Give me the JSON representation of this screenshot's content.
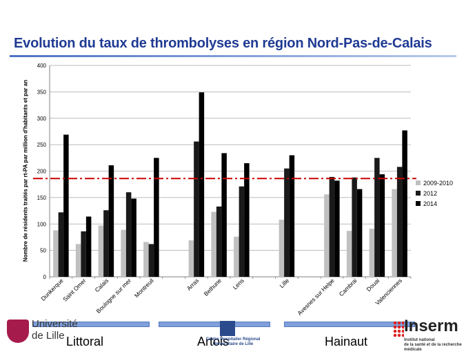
{
  "page_title": "Evolution du taux de thrombolyses en région Nord-Pas-de-Calais",
  "colors": {
    "title": "#1f3a93",
    "series_2009_2010": "#c0c0c0",
    "series_2012": "#1a1a1a",
    "series_2014": "#000000",
    "reference_line": "#cc0000"
  },
  "chart_data": {
    "type": "bar",
    "title": "",
    "ylabel": "Nombre de résidents traités par rt-PA par million d'habitants et par an",
    "xlabel": "",
    "ylim": [
      0,
      400
    ],
    "yticks": [
      0,
      50,
      100,
      150,
      200,
      250,
      300,
      350,
      400
    ],
    "grid": true,
    "legend_position": "right",
    "reference_line": {
      "y": 186,
      "style": "dash-dot"
    },
    "categories": [
      "Dunkerque",
      "Saint Omer",
      "Calais",
      "Boulogne sur mer",
      "Montreuil",
      "",
      "Arras",
      "Bethune",
      "Lens",
      "",
      "Lille",
      "",
      "Avesnes sur Helpe",
      "Cambrai",
      "Douai",
      "Valenciennes"
    ],
    "series": [
      {
        "name": "2009-2010",
        "values": [
          88,
          62,
          97,
          89,
          66,
          null,
          69,
          123,
          76,
          null,
          108,
          null,
          156,
          87,
          91,
          166
        ]
      },
      {
        "name": "2012",
        "values": [
          122,
          86,
          126,
          160,
          62,
          null,
          256,
          133,
          171,
          null,
          205,
          null,
          189,
          188,
          225,
          208
        ]
      },
      {
        "name": "2014",
        "values": [
          269,
          114,
          211,
          148,
          225,
          null,
          349,
          234,
          215,
          null,
          230,
          null,
          182,
          166,
          194,
          277
        ]
      }
    ]
  },
  "footer": {
    "regions": [
      "Littoral",
      "Artois",
      "Hainaut"
    ],
    "logo_left_text": [
      "Université",
      "de Lille"
    ],
    "logo_center_text": [
      "Centre Hospitalier Régional",
      "Universitaire de Lille"
    ],
    "logo_right_word": "Inserm",
    "logo_right_sub": [
      "Institut national",
      "de la santé et de la recherche médicale"
    ]
  }
}
